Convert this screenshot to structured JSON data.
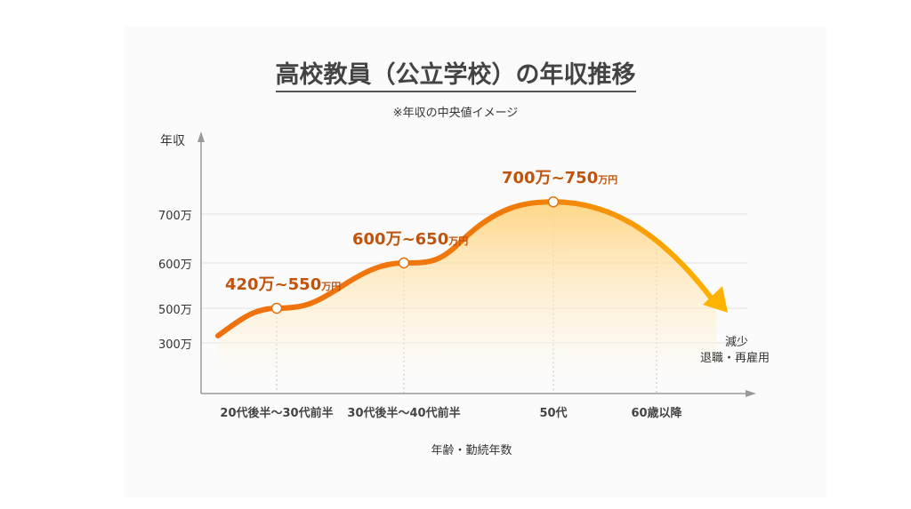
{
  "chart_data": {
    "type": "line",
    "title": "高校教員（公立学校）の年収推移",
    "subtitle": "※年収の中央値イメージ",
    "ylabel": "年収",
    "xlabel": "年齢・勤続年数",
    "y_ticks": [
      "700万",
      "600万",
      "500万",
      "300万"
    ],
    "y_tick_values": [
      700,
      600,
      500,
      300
    ],
    "categories": [
      "20代後半～30代前半",
      "30代後半～40代前半",
      "50代",
      "60歳以降"
    ],
    "points": [
      {
        "category": "20代後半～30代前半",
        "value": 500,
        "label_main": "420万~550",
        "label_unit": "万円"
      },
      {
        "category": "30代後半～40代前半",
        "value": 600,
        "label_main": "600万~650",
        "label_unit": "万円"
      },
      {
        "category": "50代",
        "value": 725,
        "label_main": "700万~750",
        "label_unit": "万円"
      }
    ],
    "trend_end": {
      "text1": "減少",
      "text2": "退職・再雇用"
    },
    "colors": {
      "line_start": "#f07010",
      "line_end": "#ffb300",
      "fill": "#ffd27a"
    }
  }
}
